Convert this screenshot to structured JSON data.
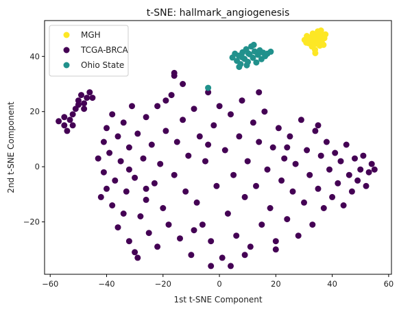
{
  "chart_data": {
    "type": "scatter",
    "title": "t-SNE: hallmark_angiogenesis",
    "xlabel": "1st t-SNE Component",
    "ylabel": "2nd t-SNE Component",
    "xlim": [
      -62,
      61
    ],
    "ylim": [
      -39,
      53
    ],
    "xticks": [
      -60,
      -40,
      -20,
      0,
      20,
      40,
      60
    ],
    "xtick_labels": [
      "−60",
      "−40",
      "−20",
      "0",
      "20",
      "40",
      "60"
    ],
    "yticks": [
      -20,
      0,
      20,
      40
    ],
    "ytick_labels": [
      "−20",
      "0",
      "20",
      "40"
    ],
    "grid": false,
    "legend_position": "top-left",
    "series": [
      {
        "name": "MGH",
        "color": "#fde725",
        "points": [
          [
            30.2,
            46.0
          ],
          [
            31.0,
            47.4
          ],
          [
            31.6,
            44.8
          ],
          [
            32.2,
            46.9
          ],
          [
            32.8,
            43.6
          ],
          [
            33.1,
            48.3
          ],
          [
            33.5,
            45.4
          ],
          [
            33.9,
            42.4
          ],
          [
            34.2,
            47.8
          ],
          [
            34.6,
            44.6
          ],
          [
            34.9,
            49.1
          ],
          [
            35.2,
            46.2
          ],
          [
            35.6,
            43.9
          ],
          [
            35.9,
            48.5
          ],
          [
            36.3,
            45.1
          ],
          [
            36.6,
            47.2
          ],
          [
            36.9,
            44.2
          ],
          [
            37.2,
            46.6
          ],
          [
            37.6,
            48.0
          ],
          [
            32.5,
            45.2
          ],
          [
            31.8,
            46.2
          ],
          [
            33.8,
            46.8
          ],
          [
            35.1,
            44.9
          ],
          [
            34.0,
            41.2
          ],
          [
            30.8,
            45.0
          ],
          [
            36.0,
            49.4
          ],
          [
            33.3,
            44.2
          ],
          [
            35.4,
            47.4
          ]
        ]
      },
      {
        "name": "TCGA-BRCA",
        "color": "#440154",
        "points": [
          [
            -57,
            16.5
          ],
          [
            -55,
            15
          ],
          [
            -55,
            18
          ],
          [
            -54,
            13
          ],
          [
            -53,
            17
          ],
          [
            -52,
            15
          ],
          [
            -52,
            19
          ],
          [
            -51,
            21
          ],
          [
            -50,
            24
          ],
          [
            -50,
            22.5
          ],
          [
            -49,
            26
          ],
          [
            -48,
            23
          ],
          [
            -47,
            25
          ],
          [
            -46,
            27
          ],
          [
            -45,
            25
          ],
          [
            -48,
            21
          ],
          [
            -43,
            3
          ],
          [
            -41,
            9
          ],
          [
            -41,
            -2
          ],
          [
            -40,
            14
          ],
          [
            -40,
            -8
          ],
          [
            -39,
            5
          ],
          [
            -38,
            -14
          ],
          [
            -38,
            19
          ],
          [
            -37,
            -5
          ],
          [
            -36,
            11
          ],
          [
            -36,
            -22
          ],
          [
            -35,
            2
          ],
          [
            -34,
            -17
          ],
          [
            -34,
            16
          ],
          [
            -33,
            -9
          ],
          [
            -32,
            7
          ],
          [
            -32,
            -27
          ],
          [
            -31,
            22
          ],
          [
            -30,
            -4
          ],
          [
            -30,
            -31
          ],
          [
            -29,
            12
          ],
          [
            -28,
            -18
          ],
          [
            -27,
            3
          ],
          [
            -26,
            -12
          ],
          [
            -26,
            18
          ],
          [
            -25,
            -24
          ],
          [
            -24,
            8
          ],
          [
            -23,
            -6
          ],
          [
            -22,
            22
          ],
          [
            -22,
            -29
          ],
          [
            -21,
            1
          ],
          [
            -20,
            -15
          ],
          [
            -19,
            13
          ],
          [
            -18,
            -21
          ],
          [
            -17,
            26
          ],
          [
            -16,
            -3
          ],
          [
            -16,
            33
          ],
          [
            -15,
            9
          ],
          [
            -14,
            -26
          ],
          [
            -13,
            17
          ],
          [
            -12,
            -9
          ],
          [
            -11,
            4
          ],
          [
            -10,
            -32
          ],
          [
            -9,
            21
          ],
          [
            -8,
            -13
          ],
          [
            -7,
            11
          ],
          [
            -6,
            -21
          ],
          [
            -5,
            2
          ],
          [
            -4,
            27
          ],
          [
            -3,
            -27
          ],
          [
            -2,
            15
          ],
          [
            -1,
            -7
          ],
          [
            0,
            22
          ],
          [
            1,
            -33
          ],
          [
            2,
            6
          ],
          [
            3,
            -17
          ],
          [
            4,
            19
          ],
          [
            5,
            -3
          ],
          [
            6,
            -25
          ],
          [
            7,
            11
          ],
          [
            8,
            24
          ],
          [
            9,
            -11
          ],
          [
            10,
            2
          ],
          [
            11,
            -29
          ],
          [
            12,
            16
          ],
          [
            13,
            -7
          ],
          [
            14,
            9
          ],
          [
            15,
            -21
          ],
          [
            16,
            20
          ],
          [
            17,
            -1
          ],
          [
            18,
            -15
          ],
          [
            19,
            7
          ],
          [
            20,
            -27
          ],
          [
            21,
            14
          ],
          [
            22,
            -5
          ],
          [
            23,
            3
          ],
          [
            24,
            -19
          ],
          [
            25,
            11
          ],
          [
            26,
            -9
          ],
          [
            27,
            1
          ],
          [
            28,
            -25
          ],
          [
            29,
            17
          ],
          [
            30,
            -13
          ],
          [
            31,
            6
          ],
          [
            32,
            -3
          ],
          [
            33,
            -21
          ],
          [
            34,
            13
          ],
          [
            35,
            -8
          ],
          [
            36,
            4
          ],
          [
            37,
            -15
          ],
          [
            38,
            9
          ],
          [
            39,
            -1
          ],
          [
            40,
            -11
          ],
          [
            41,
            5
          ],
          [
            42,
            -6
          ],
          [
            43,
            2
          ],
          [
            44,
            -14
          ],
          [
            45,
            8
          ],
          [
            46,
            -3
          ],
          [
            47,
            -9
          ],
          [
            48,
            3
          ],
          [
            49,
            -5
          ],
          [
            50,
            -1
          ],
          [
            51,
            4
          ],
          [
            52,
            -7
          ],
          [
            53,
            -2
          ],
          [
            54,
            1
          ],
          [
            55,
            -1
          ],
          [
            -19,
            24
          ],
          [
            -16,
            34
          ],
          [
            -13,
            30
          ],
          [
            -26,
            -8
          ],
          [
            -32,
            -1
          ],
          [
            -9,
            -23
          ],
          [
            4,
            -36
          ],
          [
            9,
            -32
          ],
          [
            -3,
            -36
          ],
          [
            20,
            -30
          ],
          [
            -4,
            8
          ],
          [
            14,
            27
          ],
          [
            24,
            7
          ],
          [
            35,
            15
          ],
          [
            -42,
            -11
          ],
          [
            -29,
            -33
          ]
        ]
      },
      {
        "name": "Ohio State",
        "color": "#21918c",
        "points": [
          [
            4.6,
            39.6
          ],
          [
            5.5,
            41.0
          ],
          [
            6.2,
            38.4
          ],
          [
            6.9,
            40.3
          ],
          [
            7.5,
            37.2
          ],
          [
            8.2,
            41.5
          ],
          [
            8.9,
            39.1
          ],
          [
            9.5,
            42.6
          ],
          [
            10.1,
            38.0
          ],
          [
            10.7,
            40.8
          ],
          [
            11.3,
            43.6
          ],
          [
            11.9,
            39.5
          ],
          [
            12.5,
            41.8
          ],
          [
            13.1,
            37.8
          ],
          [
            13.7,
            40.6
          ],
          [
            14.3,
            42.2
          ],
          [
            14.9,
            39.0
          ],
          [
            15.5,
            41.4
          ],
          [
            16.2,
            40.1
          ],
          [
            17.0,
            41.0
          ],
          [
            18.2,
            41.7
          ],
          [
            7.0,
            36.2
          ],
          [
            9.7,
            36.8
          ],
          [
            12.2,
            44.2
          ],
          [
            10.3,
            41.1
          ],
          [
            8.0,
            39.7
          ],
          [
            -4.0,
            28.6
          ]
        ]
      }
    ]
  }
}
